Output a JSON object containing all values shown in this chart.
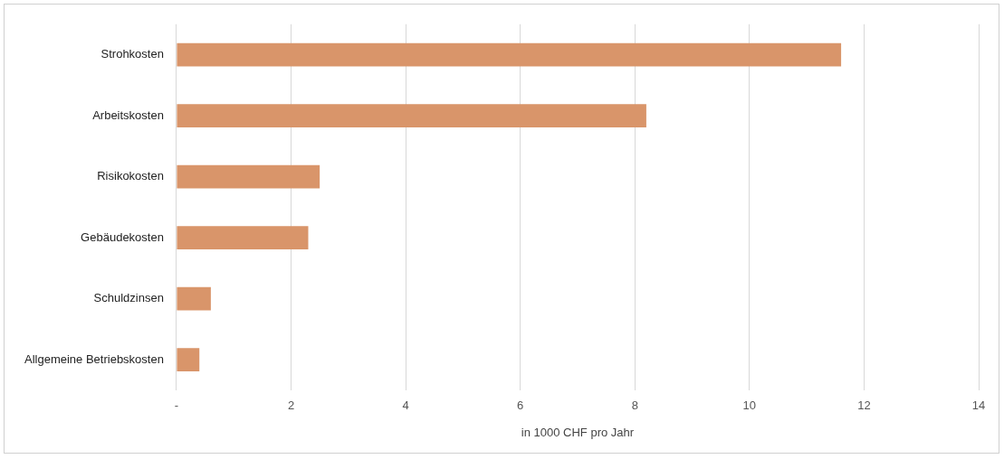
{
  "chart_data": {
    "type": "bar",
    "orientation": "horizontal",
    "xlabel": "in 1000 CHF pro Jahr",
    "categories": [
      "Strohkosten",
      "Arbeitskosten",
      "Risikokosten",
      "Gebäudekosten",
      "Schuldzinsen",
      "Allgemeine Betriebskosten"
    ],
    "values": [
      11.6,
      8.2,
      2.5,
      2.3,
      0.6,
      0.4
    ],
    "color": "#d9956a",
    "xlim": [
      0,
      14
    ],
    "xticks": [
      {
        "value": 0,
        "label": "-"
      },
      2,
      4,
      6,
      8,
      10,
      12,
      14
    ],
    "grid": "x",
    "legend": false
  }
}
